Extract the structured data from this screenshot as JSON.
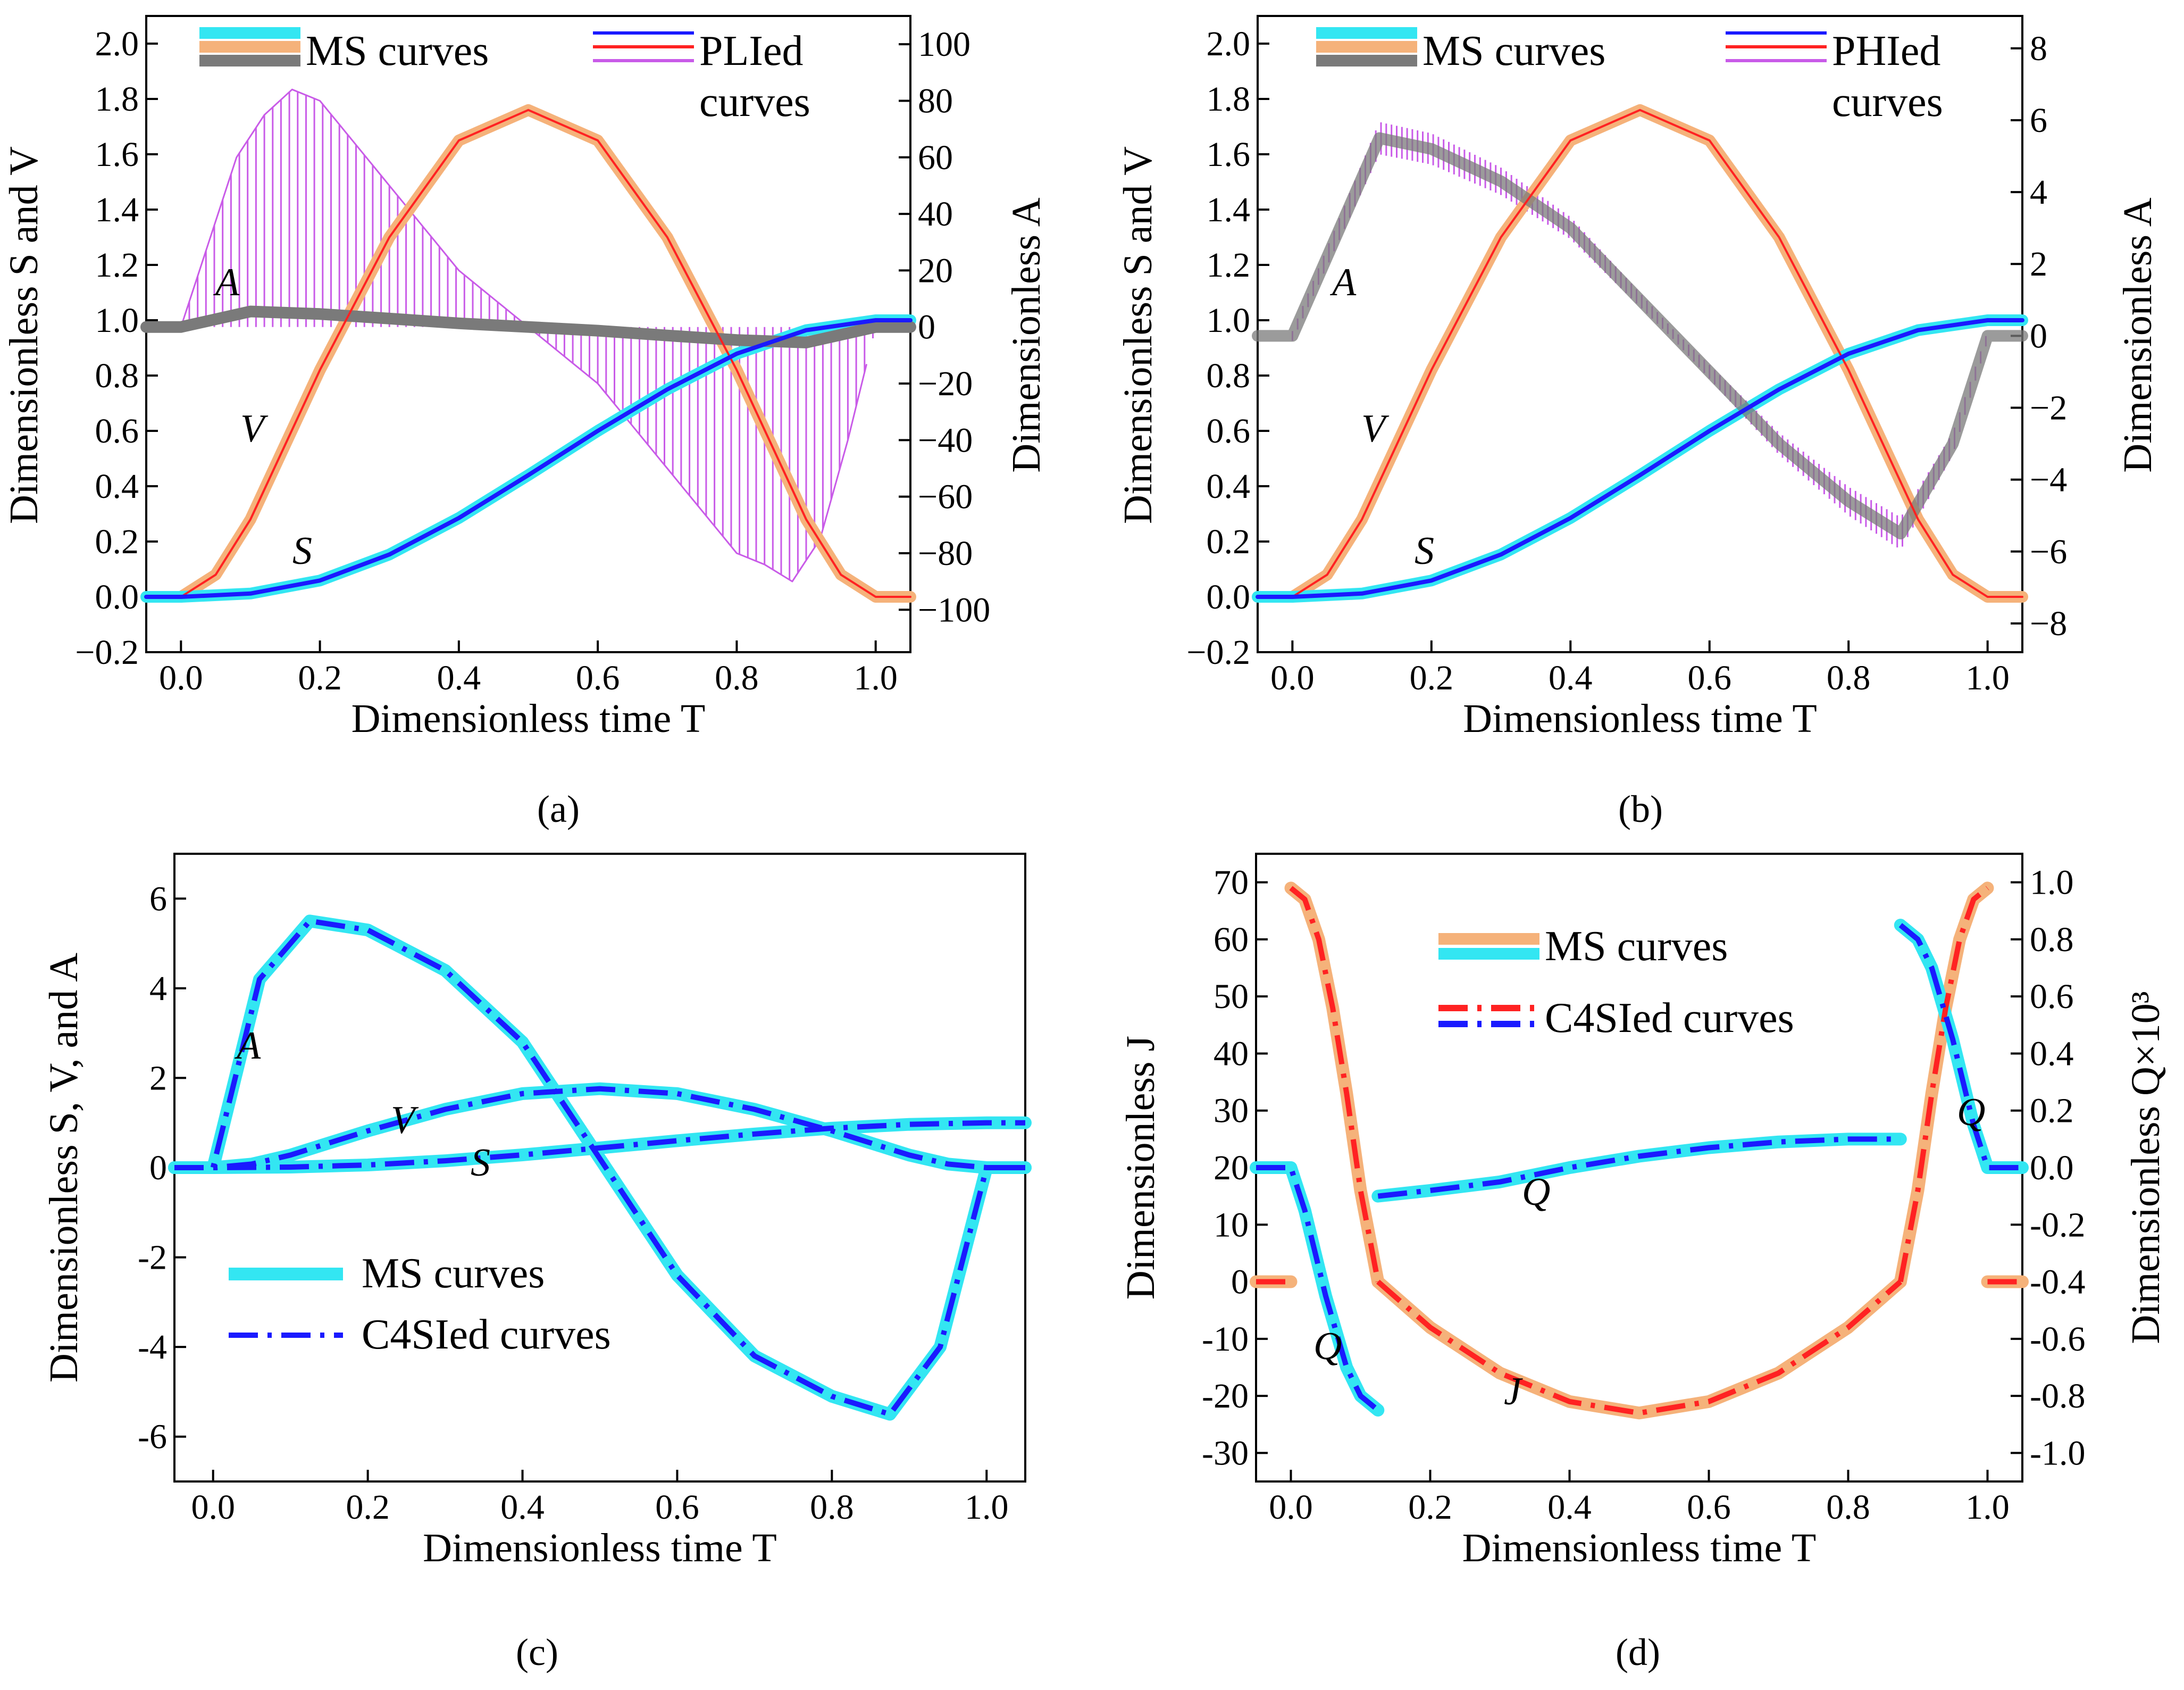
{
  "colors": {
    "cyan": "#33e6f2",
    "orange": "#f5b27a",
    "gray": "#7a7a7a",
    "blue": "#1a1aff",
    "red": "#ff2222",
    "purple": "#c95be8",
    "violet": "#9a6fb5",
    "frame": "#000000"
  },
  "chart_data": [
    {
      "id": "a",
      "type": "line",
      "caption": "(a)",
      "xlabel": "Dimensionless time T",
      "ylabel": "Dimensionless S and V",
      "y2label": "Dimensionless A",
      "xlim": [
        -0.05,
        1.05
      ],
      "ylim": [
        -0.2,
        2.1
      ],
      "y2lim": [
        -115,
        110
      ],
      "xticks": [
        "0.0",
        "0.2",
        "0.4",
        "0.6",
        "0.8",
        "1.0"
      ],
      "yticks": [
        "−0.2",
        "0.0",
        "0.2",
        "0.4",
        "0.6",
        "0.8",
        "1.0",
        "1.2",
        "1.4",
        "1.6",
        "1.8",
        "2.0"
      ],
      "y2ticks": [
        "−100",
        "−80",
        "−60",
        "−40",
        "−20",
        "0",
        "20",
        "40",
        "60",
        "80",
        "100"
      ],
      "legend": [
        "MS curves",
        "PLIed curves"
      ],
      "curve_labels": [
        "A",
        "V",
        "S"
      ],
      "series": [
        {
          "name": "S (MS)",
          "axis": "left",
          "x": [
            -0.05,
            0.0,
            0.1,
            0.2,
            0.3,
            0.4,
            0.5,
            0.6,
            0.7,
            0.8,
            0.9,
            1.0,
            1.05
          ],
          "values": [
            0.0,
            0.0,
            0.012,
            0.059,
            0.153,
            0.285,
            0.44,
            0.6,
            0.75,
            0.879,
            0.964,
            1.0,
            1.0
          ]
        },
        {
          "name": "V (MS)",
          "axis": "left",
          "x": [
            -0.05,
            0.0,
            0.05,
            0.1,
            0.15,
            0.2,
            0.3,
            0.4,
            0.5,
            0.6,
            0.7,
            0.8,
            0.85,
            0.9,
            0.95,
            1.0,
            1.05
          ],
          "values": [
            0.0,
            0.0,
            0.08,
            0.28,
            0.55,
            0.82,
            1.3,
            1.65,
            1.76,
            1.65,
            1.3,
            0.82,
            0.55,
            0.28,
            0.08,
            0.0,
            0.0
          ]
        },
        {
          "name": "A (MS)",
          "axis": "right",
          "x": [
            -0.05,
            0.0,
            0.1,
            0.2,
            0.3,
            0.4,
            0.5,
            0.6,
            0.7,
            0.8,
            0.9,
            1.0,
            1.05
          ],
          "values": [
            0,
            0,
            5.5,
            4.6,
            3.0,
            1.3,
            0.0,
            -1.3,
            -3.0,
            -4.6,
            -5.5,
            0,
            0
          ]
        },
        {
          "name": "A (PLIed)",
          "axis": "right",
          "x": [
            0.0,
            0.04,
            0.08,
            0.12,
            0.16,
            0.2,
            0.3,
            0.4,
            0.5,
            0.6,
            0.7,
            0.8,
            0.84,
            0.88,
            0.92,
            0.96,
            1.0
          ],
          "values": [
            0,
            30,
            60,
            75,
            84,
            80,
            50,
            20,
            0,
            -20,
            -50,
            -80,
            -84,
            -90,
            -75,
            -40,
            0
          ]
        }
      ]
    },
    {
      "id": "b",
      "type": "line",
      "caption": "(b)",
      "xlabel": "Dimensionless time T",
      "ylabel": "Dimensionless S and V",
      "y2label": "Dimensionless A",
      "xlim": [
        -0.05,
        1.05
      ],
      "ylim": [
        -0.2,
        2.1
      ],
      "y2lim": [
        -8.8,
        8.9
      ],
      "xticks": [
        "0.0",
        "0.2",
        "0.4",
        "0.6",
        "0.8",
        "1.0"
      ],
      "yticks": [
        "−0.2",
        "0.0",
        "0.2",
        "0.4",
        "0.6",
        "0.8",
        "1.0",
        "1.2",
        "1.4",
        "1.6",
        "1.8",
        "2.0"
      ],
      "y2ticks": [
        "−8",
        "−6",
        "−4",
        "−2",
        "0",
        "2",
        "4",
        "6",
        "8"
      ],
      "legend": [
        "MS curves",
        "PHIed curves"
      ],
      "curve_labels": [
        "A",
        "V",
        "S"
      ],
      "series": [
        {
          "name": "S (MS)",
          "axis": "left",
          "x": [
            -0.05,
            0.0,
            0.1,
            0.2,
            0.3,
            0.4,
            0.5,
            0.6,
            0.7,
            0.8,
            0.9,
            1.0,
            1.05
          ],
          "values": [
            0.0,
            0.0,
            0.012,
            0.059,
            0.153,
            0.285,
            0.44,
            0.6,
            0.75,
            0.879,
            0.964,
            1.0,
            1.0
          ]
        },
        {
          "name": "V (MS)",
          "axis": "left",
          "x": [
            -0.05,
            0.0,
            0.05,
            0.1,
            0.15,
            0.2,
            0.3,
            0.4,
            0.5,
            0.6,
            0.7,
            0.8,
            0.85,
            0.9,
            0.95,
            1.0,
            1.05
          ],
          "values": [
            0.0,
            0.0,
            0.08,
            0.28,
            0.55,
            0.82,
            1.3,
            1.65,
            1.76,
            1.65,
            1.3,
            0.82,
            0.55,
            0.28,
            0.08,
            0.0,
            0.0
          ]
        },
        {
          "name": "A (MS)",
          "axis": "right",
          "x": [
            -0.05,
            0.0,
            0.125,
            0.2,
            0.3,
            0.4,
            0.5,
            0.6,
            0.7,
            0.8,
            0.875,
            0.95,
            1.0,
            1.05
          ],
          "values": [
            0,
            0,
            5.5,
            5.2,
            4.3,
            3.0,
            1.0,
            -1.0,
            -3.0,
            -4.6,
            -5.5,
            -3.0,
            0,
            0
          ]
        }
      ]
    },
    {
      "id": "c",
      "type": "line",
      "caption": "(c)",
      "xlabel": "Dimensionless time T",
      "ylabel": "Dimensionless S, V, and A",
      "xlim": [
        -0.05,
        1.05
      ],
      "ylim": [
        -7,
        7
      ],
      "xticks": [
        "0.0",
        "0.2",
        "0.4",
        "0.6",
        "0.8",
        "1.0"
      ],
      "yticks": [
        "-6",
        "-4",
        "-2",
        "0",
        "2",
        "4",
        "6"
      ],
      "legend": [
        "MS curves",
        "C4SIed curves"
      ],
      "curve_labels": [
        "A",
        "V",
        "S"
      ],
      "series": [
        {
          "name": "S",
          "x": [
            -0.05,
            0.0,
            0.1,
            0.2,
            0.3,
            0.4,
            0.5,
            0.6,
            0.7,
            0.8,
            0.9,
            1.0,
            1.05
          ],
          "values": [
            0.0,
            0.0,
            0.012,
            0.059,
            0.153,
            0.285,
            0.44,
            0.6,
            0.75,
            0.879,
            0.964,
            1.0,
            1.0
          ]
        },
        {
          "name": "V",
          "x": [
            -0.05,
            0.0,
            0.05,
            0.1,
            0.15,
            0.2,
            0.3,
            0.4,
            0.5,
            0.6,
            0.7,
            0.8,
            0.85,
            0.9,
            0.95,
            1.0,
            1.05
          ],
          "values": [
            0.0,
            0.0,
            0.08,
            0.28,
            0.55,
            0.82,
            1.3,
            1.65,
            1.76,
            1.65,
            1.3,
            0.82,
            0.55,
            0.28,
            0.08,
            0.0,
            0.0
          ]
        },
        {
          "name": "A",
          "x": [
            -0.05,
            0.0,
            0.06,
            0.125,
            0.2,
            0.3,
            0.4,
            0.5,
            0.6,
            0.7,
            0.8,
            0.875,
            0.94,
            1.0,
            1.05
          ],
          "values": [
            0,
            0,
            4.2,
            5.5,
            5.3,
            4.4,
            2.8,
            0.2,
            -2.4,
            -4.2,
            -5.1,
            -5.5,
            -4.0,
            0,
            0
          ]
        }
      ]
    },
    {
      "id": "d",
      "type": "line",
      "caption": "(d)",
      "xlabel": "Dimensionless time T",
      "ylabel": "Dimensionless J",
      "y2label": "Dimensionless Q×10³",
      "xlim": [
        -0.05,
        1.05
      ],
      "ylim": [
        -35,
        75
      ],
      "y2lim": [
        -1.1,
        1.1
      ],
      "xticks": [
        "0.0",
        "0.2",
        "0.4",
        "0.6",
        "0.8",
        "1.0"
      ],
      "yticks": [
        "-30",
        "-20",
        "-10",
        "0",
        "10",
        "20",
        "30",
        "40",
        "50",
        "60",
        "70"
      ],
      "y2ticks": [
        "-1.0",
        "-0.8",
        "-0.6",
        "-0.4",
        "-0.2",
        "0.0",
        "0.2",
        "0.4",
        "0.6",
        "0.8",
        "1.0"
      ],
      "legend": [
        "MS curves",
        "C4SIed curves"
      ],
      "curve_labels": [
        "Q",
        "Q",
        "Q",
        "J"
      ],
      "series": [
        {
          "name": "J (rise)",
          "axis": "left",
          "x": [
            0.0,
            0.02,
            0.04,
            0.06,
            0.08,
            0.1,
            0.125
          ],
          "values": [
            69,
            67,
            60,
            48,
            33,
            16,
            0
          ]
        },
        {
          "name": "J (middle)",
          "axis": "left",
          "x": [
            0.125,
            0.2,
            0.3,
            0.4,
            0.5,
            0.6,
            0.7,
            0.8,
            0.875
          ],
          "values": [
            0,
            -8,
            -16,
            -21,
            -23,
            -21,
            -16,
            -8,
            0
          ]
        },
        {
          "name": "J (end)",
          "axis": "left",
          "x": [
            0.875,
            0.9,
            0.92,
            0.94,
            0.96,
            0.98,
            1.0
          ],
          "values": [
            0,
            16,
            33,
            48,
            60,
            67,
            69
          ]
        },
        {
          "name": "J (flat start)",
          "axis": "left",
          "x": [
            -0.05,
            0.0
          ],
          "values": [
            0,
            0
          ]
        },
        {
          "name": "J (flat end)",
          "axis": "left",
          "x": [
            1.0,
            1.05
          ],
          "values": [
            0,
            0
          ]
        },
        {
          "name": "Q (start)",
          "axis": "right",
          "x": [
            -0.05,
            0.0,
            0.02,
            0.05,
            0.08,
            0.1,
            0.125
          ],
          "values": [
            0,
            0,
            -0.15,
            -0.45,
            -0.7,
            -0.8,
            -0.85
          ]
        },
        {
          "name": "Q (middle)",
          "axis": "right",
          "x": [
            0.125,
            0.2,
            0.3,
            0.4,
            0.5,
            0.6,
            0.7,
            0.8,
            0.875
          ],
          "values": [
            -0.1,
            -0.08,
            -0.05,
            0.0,
            0.04,
            0.07,
            0.09,
            0.1,
            0.1
          ]
        },
        {
          "name": "Q (end)",
          "axis": "right",
          "x": [
            0.875,
            0.9,
            0.92,
            0.95,
            0.98,
            1.0,
            1.05
          ],
          "values": [
            0.85,
            0.8,
            0.7,
            0.45,
            0.15,
            0.0,
            0.0
          ]
        }
      ]
    }
  ]
}
